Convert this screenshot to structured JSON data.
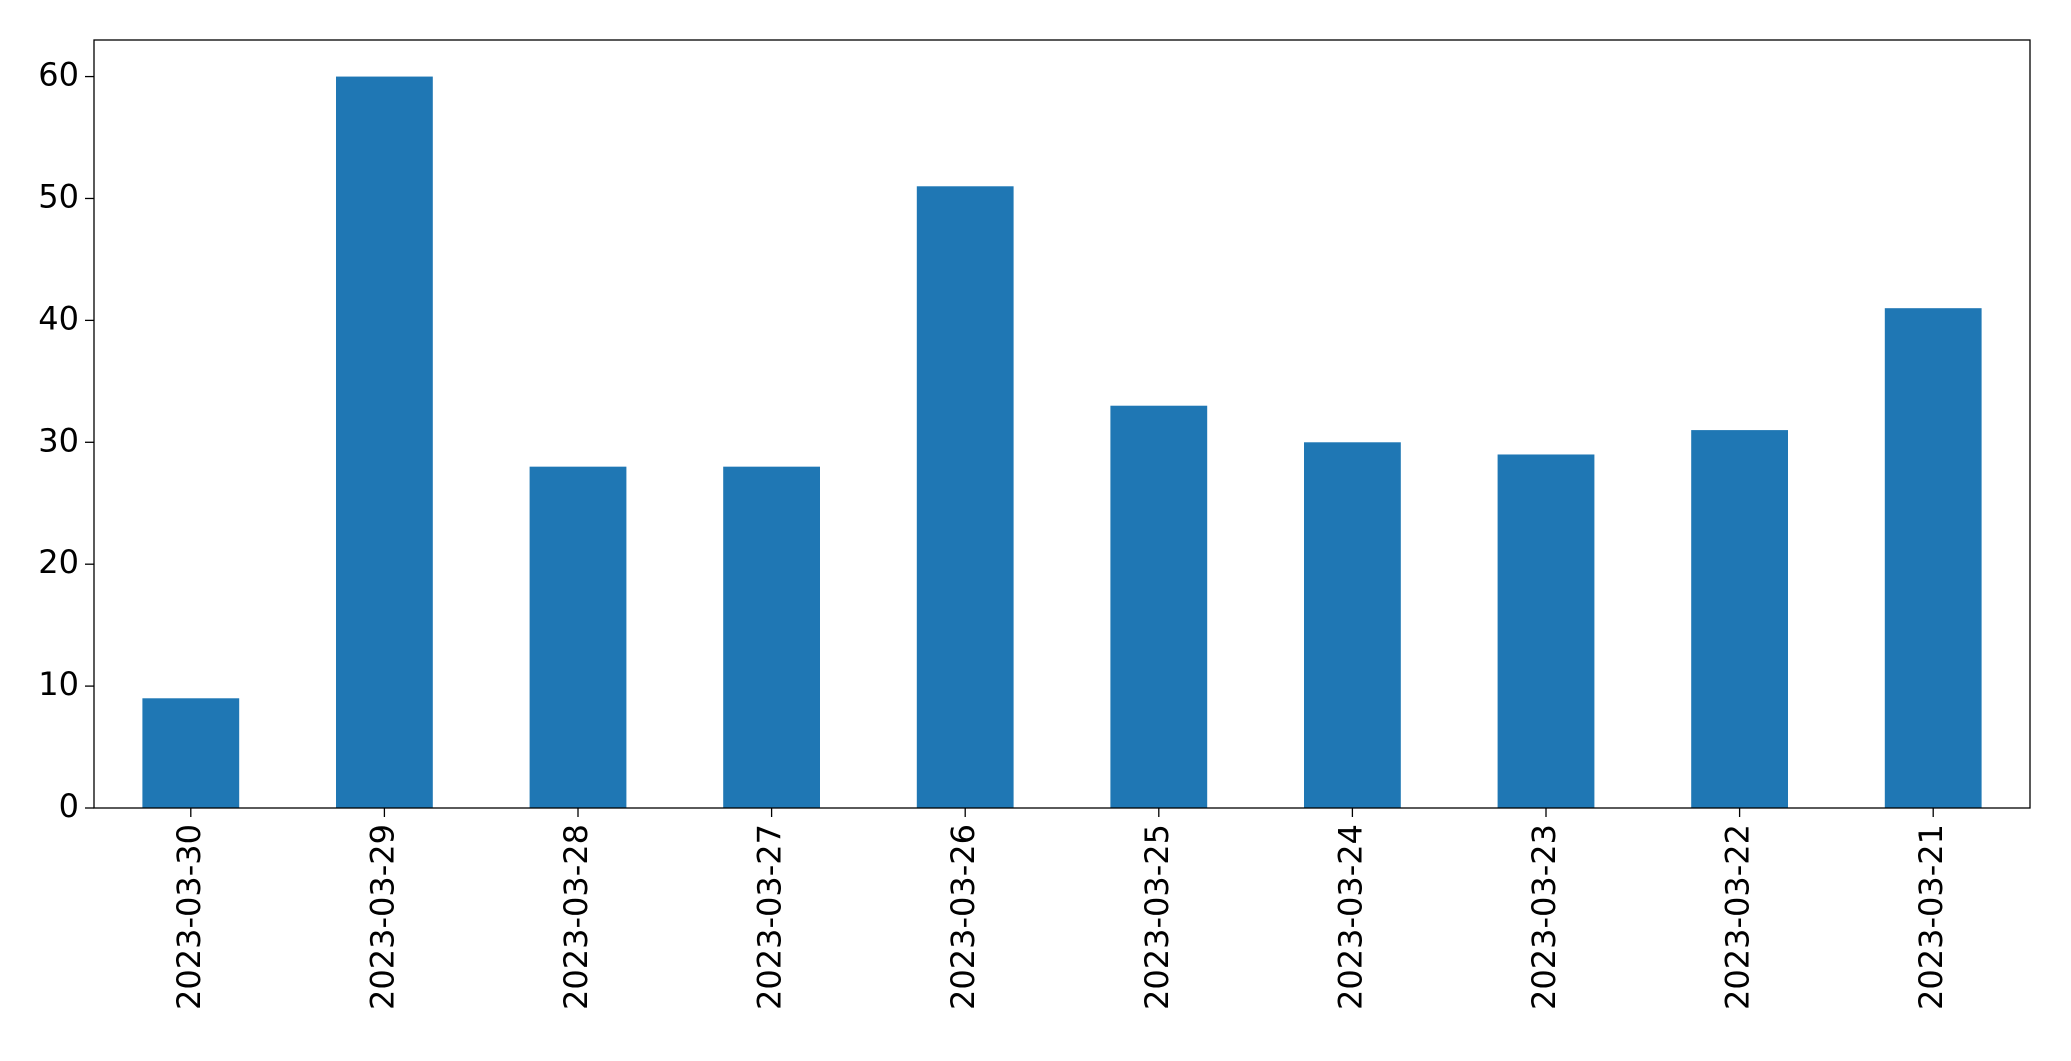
{
  "chart_data": {
    "type": "bar",
    "categories": [
      "2023-03-30",
      "2023-03-29",
      "2023-03-28",
      "2023-03-27",
      "2023-03-26",
      "2023-03-25",
      "2023-03-24",
      "2023-03-23",
      "2023-03-22",
      "2023-03-21"
    ],
    "values": [
      9,
      60,
      28,
      28,
      51,
      33,
      30,
      29,
      31,
      41
    ],
    "color": "#1f77b4",
    "ylim": [
      0,
      63
    ],
    "yticks": [
      0,
      10,
      20,
      30,
      40,
      50,
      60
    ],
    "grid": false
  }
}
